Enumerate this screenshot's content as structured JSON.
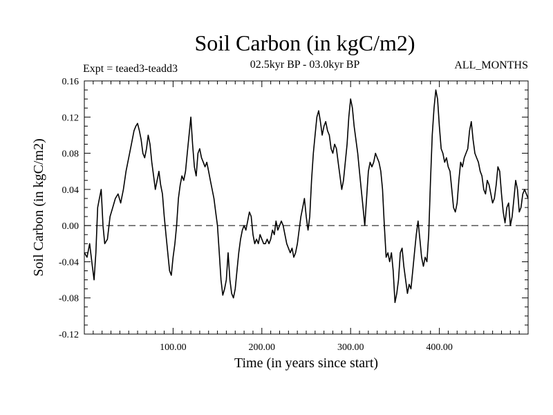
{
  "chart_data": {
    "type": "line",
    "title": "Soil Carbon (in kgC/m2)",
    "subtitle": "02.5kyr BP - 03.0kyr BP",
    "experiment": "Expt = teaed3-teadd3",
    "period": "ALL_MONTHS",
    "xlabel": "Time (in years since start)",
    "ylabel": "Soil Carbon (in kgC/m2)",
    "xlim": [
      0,
      500
    ],
    "ylim": [
      -0.12,
      0.16
    ],
    "x_ticks": [
      {
        "value": 100,
        "label": "100.00"
      },
      {
        "value": 200,
        "label": "200.00"
      },
      {
        "value": 300,
        "label": "300.00"
      },
      {
        "value": 400,
        "label": "400.00"
      }
    ],
    "y_ticks": [
      {
        "value": 0.16,
        "label": "0.16"
      },
      {
        "value": 0.12,
        "label": "0.12"
      },
      {
        "value": 0.08,
        "label": "0.08"
      },
      {
        "value": 0.04,
        "label": "0.04"
      },
      {
        "value": 0.0,
        "label": "0.00"
      },
      {
        "value": -0.04,
        "label": "-0.04"
      },
      {
        "value": -0.08,
        "label": "-0.08"
      },
      {
        "value": -0.12,
        "label": "-0.12"
      }
    ],
    "reference_line": {
      "y": 0.0,
      "style": "dashed"
    },
    "series": [
      {
        "name": "Soil Carbon",
        "color": "#000000",
        "points": [
          [
            0,
            -0.03
          ],
          [
            3,
            -0.035
          ],
          [
            6,
            -0.02
          ],
          [
            9,
            -0.045
          ],
          [
            11,
            -0.06
          ],
          [
            13,
            -0.03
          ],
          [
            15,
            0.02
          ],
          [
            17,
            0.03
          ],
          [
            19,
            0.04
          ],
          [
            21,
            0.0
          ],
          [
            23,
            -0.02
          ],
          [
            26,
            -0.015
          ],
          [
            29,
            0.01
          ],
          [
            32,
            0.02
          ],
          [
            35,
            0.03
          ],
          [
            38,
            0.035
          ],
          [
            41,
            0.025
          ],
          [
            44,
            0.04
          ],
          [
            47,
            0.06
          ],
          [
            50,
            0.075
          ],
          [
            53,
            0.09
          ],
          [
            56,
            0.105
          ],
          [
            58,
            0.11
          ],
          [
            60,
            0.113
          ],
          [
            62,
            0.105
          ],
          [
            64,
            0.095
          ],
          [
            66,
            0.08
          ],
          [
            68,
            0.075
          ],
          [
            70,
            0.085
          ],
          [
            72,
            0.1
          ],
          [
            74,
            0.09
          ],
          [
            76,
            0.07
          ],
          [
            78,
            0.055
          ],
          [
            80,
            0.04
          ],
          [
            82,
            0.05
          ],
          [
            84,
            0.06
          ],
          [
            86,
            0.045
          ],
          [
            88,
            0.035
          ],
          [
            90,
            0.01
          ],
          [
            92,
            -0.01
          ],
          [
            94,
            -0.03
          ],
          [
            96,
            -0.05
          ],
          [
            98,
            -0.055
          ],
          [
            100,
            -0.035
          ],
          [
            102,
            -0.02
          ],
          [
            104,
            0.0
          ],
          [
            106,
            0.03
          ],
          [
            108,
            0.045
          ],
          [
            110,
            0.055
          ],
          [
            112,
            0.05
          ],
          [
            114,
            0.06
          ],
          [
            116,
            0.08
          ],
          [
            118,
            0.1
          ],
          [
            120,
            0.12
          ],
          [
            122,
            0.09
          ],
          [
            124,
            0.065
          ],
          [
            126,
            0.055
          ],
          [
            128,
            0.08
          ],
          [
            130,
            0.085
          ],
          [
            132,
            0.075
          ],
          [
            134,
            0.07
          ],
          [
            136,
            0.065
          ],
          [
            138,
            0.07
          ],
          [
            140,
            0.06
          ],
          [
            142,
            0.05
          ],
          [
            144,
            0.04
          ],
          [
            146,
            0.03
          ],
          [
            148,
            0.015
          ],
          [
            150,
            0.0
          ],
          [
            152,
            -0.03
          ],
          [
            154,
            -0.06
          ],
          [
            156,
            -0.077
          ],
          [
            158,
            -0.07
          ],
          [
            160,
            -0.06
          ],
          [
            162,
            -0.03
          ],
          [
            164,
            -0.06
          ],
          [
            166,
            -0.075
          ],
          [
            168,
            -0.08
          ],
          [
            170,
            -0.07
          ],
          [
            172,
            -0.05
          ],
          [
            174,
            -0.03
          ],
          [
            176,
            -0.015
          ],
          [
            178,
            -0.005
          ],
          [
            180,
            0.0
          ],
          [
            182,
            -0.005
          ],
          [
            184,
            0.005
          ],
          [
            186,
            0.015
          ],
          [
            188,
            0.01
          ],
          [
            190,
            -0.01
          ],
          [
            192,
            -0.02
          ],
          [
            194,
            -0.015
          ],
          [
            196,
            -0.02
          ],
          [
            198,
            -0.01
          ],
          [
            200,
            -0.015
          ],
          [
            202,
            -0.02
          ],
          [
            204,
            -0.02
          ],
          [
            206,
            -0.015
          ],
          [
            208,
            -0.02
          ],
          [
            210,
            -0.015
          ],
          [
            212,
            -0.005
          ],
          [
            214,
            -0.01
          ],
          [
            216,
            0.005
          ],
          [
            218,
            -0.005
          ],
          [
            220,
            0.0
          ],
          [
            222,
            0.005
          ],
          [
            224,
            0.0
          ],
          [
            226,
            -0.01
          ],
          [
            228,
            -0.02
          ],
          [
            230,
            -0.025
          ],
          [
            232,
            -0.03
          ],
          [
            234,
            -0.025
          ],
          [
            236,
            -0.035
          ],
          [
            238,
            -0.03
          ],
          [
            240,
            -0.02
          ],
          [
            242,
            -0.005
          ],
          [
            244,
            0.01
          ],
          [
            246,
            0.02
          ],
          [
            248,
            0.03
          ],
          [
            250,
            0.01
          ],
          [
            252,
            -0.005
          ],
          [
            254,
            0.01
          ],
          [
            256,
            0.05
          ],
          [
            258,
            0.08
          ],
          [
            260,
            0.1
          ],
          [
            262,
            0.12
          ],
          [
            264,
            0.127
          ],
          [
            266,
            0.115
          ],
          [
            268,
            0.1
          ],
          [
            270,
            0.11
          ],
          [
            272,
            0.115
          ],
          [
            274,
            0.105
          ],
          [
            276,
            0.1
          ],
          [
            278,
            0.085
          ],
          [
            280,
            0.08
          ],
          [
            282,
            0.09
          ],
          [
            284,
            0.085
          ],
          [
            286,
            0.07
          ],
          [
            288,
            0.055
          ],
          [
            290,
            0.04
          ],
          [
            292,
            0.05
          ],
          [
            294,
            0.07
          ],
          [
            296,
            0.09
          ],
          [
            298,
            0.12
          ],
          [
            300,
            0.14
          ],
          [
            302,
            0.13
          ],
          [
            304,
            0.11
          ],
          [
            306,
            0.095
          ],
          [
            308,
            0.08
          ],
          [
            310,
            0.06
          ],
          [
            312,
            0.04
          ],
          [
            314,
            0.02
          ],
          [
            316,
            0.0
          ],
          [
            318,
            0.03
          ],
          [
            320,
            0.06
          ],
          [
            322,
            0.07
          ],
          [
            324,
            0.065
          ],
          [
            326,
            0.07
          ],
          [
            328,
            0.08
          ],
          [
            330,
            0.075
          ],
          [
            332,
            0.07
          ],
          [
            334,
            0.06
          ],
          [
            336,
            0.04
          ],
          [
            338,
            0.0
          ],
          [
            340,
            -0.035
          ],
          [
            342,
            -0.03
          ],
          [
            344,
            -0.04
          ],
          [
            346,
            -0.03
          ],
          [
            348,
            -0.05
          ],
          [
            350,
            -0.085
          ],
          [
            352,
            -0.075
          ],
          [
            354,
            -0.06
          ],
          [
            356,
            -0.03
          ],
          [
            358,
            -0.025
          ],
          [
            360,
            -0.045
          ],
          [
            362,
            -0.06
          ],
          [
            364,
            -0.075
          ],
          [
            366,
            -0.065
          ],
          [
            368,
            -0.07
          ],
          [
            370,
            -0.05
          ],
          [
            372,
            -0.03
          ],
          [
            374,
            -0.01
          ],
          [
            376,
            0.005
          ],
          [
            378,
            -0.015
          ],
          [
            380,
            -0.035
          ],
          [
            382,
            -0.045
          ],
          [
            384,
            -0.035
          ],
          [
            386,
            -0.04
          ],
          [
            388,
            -0.01
          ],
          [
            390,
            0.05
          ],
          [
            392,
            0.1
          ],
          [
            394,
            0.13
          ],
          [
            396,
            0.15
          ],
          [
            398,
            0.14
          ],
          [
            400,
            0.11
          ],
          [
            402,
            0.085
          ],
          [
            404,
            0.08
          ],
          [
            406,
            0.07
          ],
          [
            408,
            0.075
          ],
          [
            410,
            0.065
          ],
          [
            412,
            0.06
          ],
          [
            414,
            0.04
          ],
          [
            416,
            0.02
          ],
          [
            418,
            0.015
          ],
          [
            420,
            0.025
          ],
          [
            422,
            0.05
          ],
          [
            424,
            0.07
          ],
          [
            426,
            0.065
          ],
          [
            428,
            0.075
          ],
          [
            430,
            0.08
          ],
          [
            432,
            0.085
          ],
          [
            434,
            0.105
          ],
          [
            436,
            0.115
          ],
          [
            438,
            0.095
          ],
          [
            440,
            0.08
          ],
          [
            442,
            0.075
          ],
          [
            444,
            0.07
          ],
          [
            446,
            0.06
          ],
          [
            448,
            0.055
          ],
          [
            450,
            0.04
          ],
          [
            452,
            0.035
          ],
          [
            454,
            0.05
          ],
          [
            456,
            0.045
          ],
          [
            458,
            0.035
          ],
          [
            460,
            0.025
          ],
          [
            462,
            0.03
          ],
          [
            464,
            0.045
          ],
          [
            466,
            0.065
          ],
          [
            468,
            0.06
          ],
          [
            470,
            0.035
          ],
          [
            472,
            0.015
          ],
          [
            474,
            0.003
          ],
          [
            476,
            0.02
          ],
          [
            478,
            0.025
          ],
          [
            480,
            0.0
          ],
          [
            482,
            0.01
          ],
          [
            484,
            0.03
          ],
          [
            486,
            0.05
          ],
          [
            488,
            0.04
          ],
          [
            490,
            0.015
          ],
          [
            492,
            0.02
          ],
          [
            494,
            0.035
          ],
          [
            496,
            0.04
          ],
          [
            498,
            0.035
          ],
          [
            500,
            0.03
          ]
        ]
      }
    ]
  }
}
